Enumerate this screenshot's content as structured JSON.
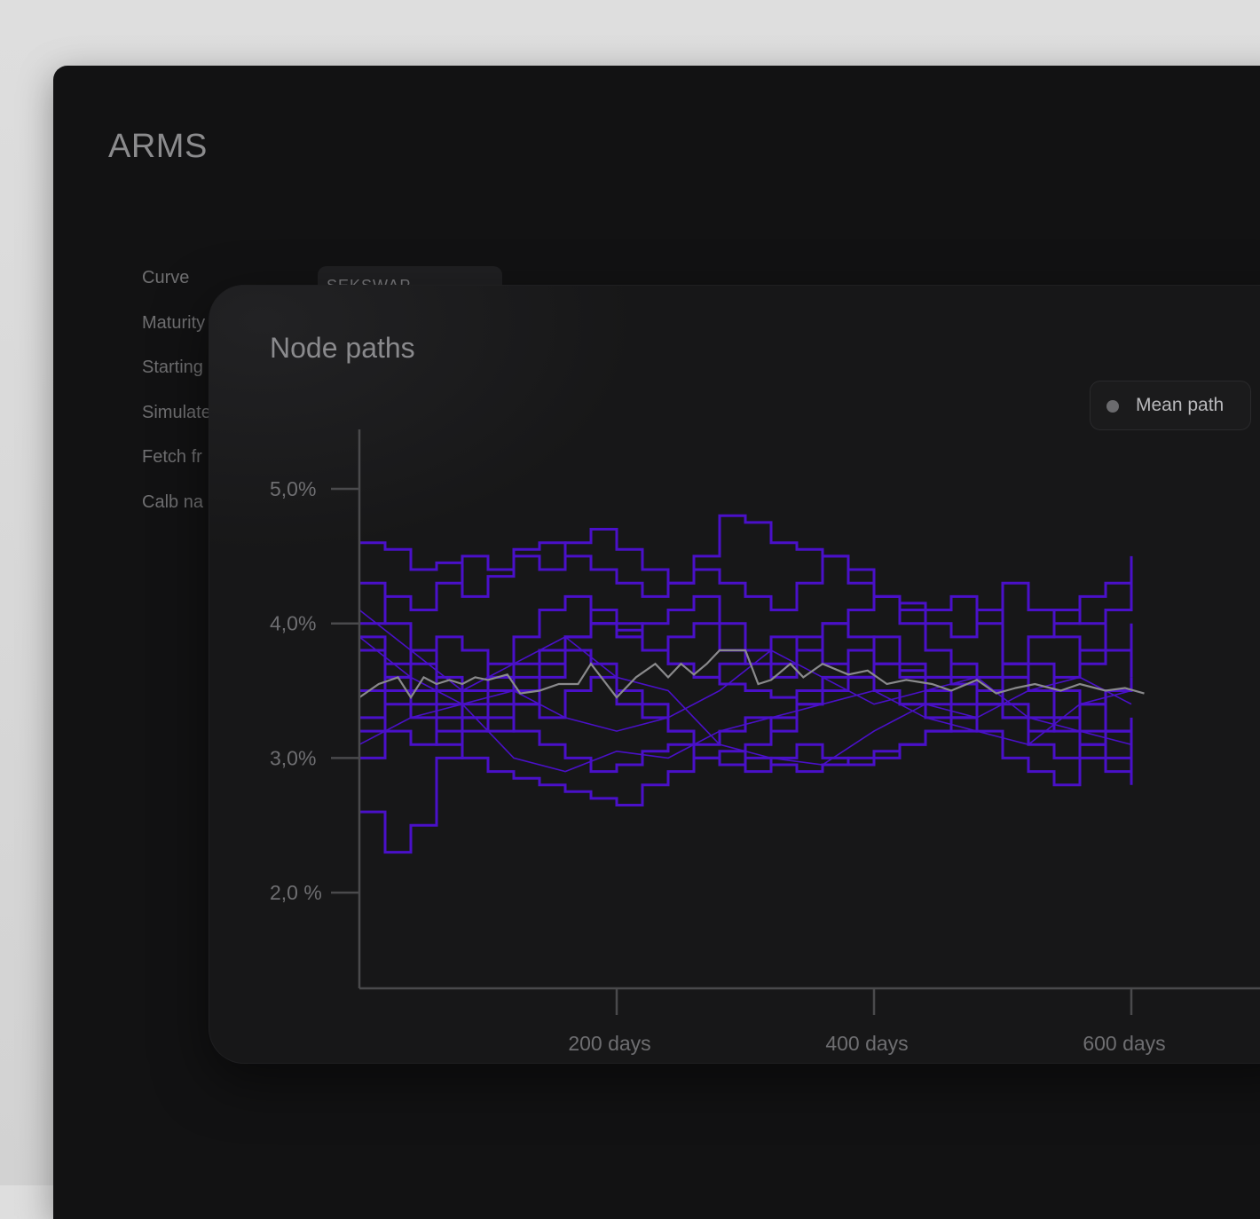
{
  "app": {
    "title": "ARMS"
  },
  "form": {
    "labels": [
      "Curve",
      "Maturity",
      "Starting",
      "Simulate",
      "Fetch fr",
      "Calb na"
    ],
    "curve_select": {
      "value": "SEKSWAP"
    }
  },
  "card": {
    "title": "Node paths"
  },
  "legend": {
    "label": "Mean path",
    "dot_color": "#6b6b6e"
  },
  "colors": {
    "paths": "#4a10c9",
    "mean": "#8a8a8c",
    "axis": "#4a4a4c"
  },
  "chart_data": {
    "type": "line",
    "title": "Node paths",
    "xlabel": "",
    "ylabel": "",
    "xlim": [
      0,
      610
    ],
    "ylim": [
      1.3,
      5.45
    ],
    "x_ticks": [
      200,
      400,
      600
    ],
    "x_tick_labels": [
      "200 days",
      "400 days",
      "600 days"
    ],
    "y_ticks": [
      5.0,
      4.0,
      3.0,
      2.0
    ],
    "y_tick_labels": [
      "5,0%",
      "4,0%",
      "3,0%",
      "2,0 %"
    ],
    "grid": false,
    "legend": "top-right",
    "paths": [
      {
        "x": [
          0,
          20,
          40,
          60,
          80,
          100,
          120,
          140,
          160,
          180,
          200,
          220,
          240,
          260,
          280,
          300,
          320,
          340,
          360,
          380,
          400,
          420,
          440,
          460,
          480,
          500,
          520,
          540,
          560,
          580,
          600
        ],
        "y": [
          4.6,
          4.55,
          4.4,
          4.45,
          4.2,
          4.35,
          4.5,
          4.4,
          4.6,
          4.7,
          4.55,
          4.4,
          4.3,
          4.5,
          4.8,
          4.75,
          4.6,
          4.55,
          4.5,
          4.3,
          4.2,
          4.1,
          4.0,
          3.9,
          4.1,
          3.7,
          3.5,
          3.6,
          3.8,
          4.1,
          4.5
        ]
      },
      {
        "x": [
          0,
          20,
          40,
          60,
          80,
          100,
          120,
          140,
          160,
          180,
          200,
          220,
          240,
          260,
          280,
          300,
          320,
          340,
          360,
          380,
          400,
          420,
          440,
          460,
          480,
          500,
          520,
          540,
          560,
          580,
          600
        ],
        "y": [
          4.0,
          4.2,
          4.1,
          4.3,
          4.5,
          4.4,
          4.55,
          4.6,
          4.5,
          4.4,
          4.3,
          4.2,
          4.3,
          4.4,
          4.3,
          4.2,
          4.1,
          4.3,
          4.5,
          4.4,
          4.2,
          4.15,
          4.1,
          4.2,
          4.0,
          4.3,
          4.1,
          3.9,
          3.7,
          3.8,
          4.0
        ]
      },
      {
        "x": [
          0,
          20,
          40,
          60,
          80,
          100,
          120,
          140,
          160,
          180,
          200,
          220,
          240,
          260,
          280,
          300,
          320,
          340,
          360,
          380,
          400,
          420,
          440,
          460,
          480,
          500,
          520,
          540,
          560,
          580,
          600
        ],
        "y": [
          3.2,
          3.4,
          3.3,
          3.1,
          3.0,
          2.9,
          2.85,
          2.8,
          2.75,
          2.7,
          2.65,
          2.8,
          2.9,
          3.0,
          3.05,
          3.0,
          2.95,
          2.9,
          2.95,
          3.0,
          3.05,
          3.1,
          3.2,
          3.3,
          3.2,
          3.0,
          2.9,
          2.8,
          3.0,
          2.9,
          2.8
        ]
      },
      {
        "x": [
          0,
          20,
          40,
          60,
          80,
          100,
          120,
          140,
          160,
          180,
          200,
          220,
          240,
          260,
          280,
          300,
          320,
          340,
          360,
          380,
          400,
          420,
          440,
          460,
          480,
          500,
          520,
          540,
          560,
          580,
          600
        ],
        "y": [
          2.6,
          2.3,
          2.5,
          3.0,
          3.2,
          3.4,
          3.6,
          3.8,
          3.9,
          4.0,
          3.95,
          3.8,
          3.7,
          3.6,
          3.55,
          3.5,
          3.45,
          3.4,
          3.5,
          3.6,
          3.7,
          3.65,
          3.6,
          3.55,
          3.4,
          3.3,
          3.2,
          3.3,
          3.4,
          3.5,
          3.6
        ]
      },
      {
        "x": [
          0,
          20,
          40,
          60,
          80,
          100,
          120,
          140,
          160,
          180,
          200,
          220,
          240,
          260,
          280,
          300,
          320,
          340,
          360,
          380,
          400,
          420,
          440,
          460,
          480,
          500,
          520,
          540,
          560,
          580,
          600
        ],
        "y": [
          3.8,
          3.6,
          3.5,
          3.4,
          3.5,
          3.6,
          3.7,
          3.8,
          3.9,
          4.0,
          3.9,
          3.8,
          3.7,
          3.6,
          3.7,
          3.8,
          3.9,
          3.8,
          3.7,
          3.6,
          3.5,
          3.4,
          3.3,
          3.2,
          3.4,
          3.6,
          3.5,
          3.3,
          3.2,
          3.0,
          2.9
        ]
      },
      {
        "x": [
          0,
          20,
          40,
          60,
          80,
          100,
          120,
          140,
          160,
          180,
          200,
          220,
          240,
          260,
          280,
          300,
          320,
          340,
          360,
          380,
          400,
          420,
          440,
          460,
          480,
          500,
          520,
          540,
          560,
          580,
          600
        ],
        "y": [
          3.0,
          3.2,
          3.1,
          3.3,
          3.4,
          3.3,
          3.2,
          3.1,
          3.0,
          2.9,
          2.95,
          3.05,
          3.1,
          3.0,
          2.95,
          2.9,
          3.0,
          3.1,
          3.0,
          2.95,
          3.0,
          3.1,
          3.2,
          3.4,
          3.5,
          3.3,
          3.1,
          3.0,
          3.1,
          3.2,
          3.0
        ]
      },
      {
        "x": [
          0,
          20,
          40,
          60,
          80,
          100,
          120,
          140,
          160,
          180,
          200,
          220,
          240,
          260,
          280,
          300,
          320,
          340,
          360,
          380,
          400,
          420,
          440,
          460,
          480,
          500,
          520,
          540,
          560,
          580,
          600
        ],
        "y": [
          4.3,
          4.0,
          3.8,
          3.6,
          3.5,
          3.7,
          3.9,
          4.1,
          4.2,
          4.0,
          3.9,
          4.0,
          4.1,
          4.2,
          4.0,
          3.8,
          3.7,
          3.9,
          4.0,
          4.1,
          4.2,
          4.0,
          3.8,
          3.6,
          3.5,
          3.7,
          3.9,
          4.0,
          4.2,
          4.3,
          4.4
        ]
      },
      {
        "x": [
          0,
          20,
          40,
          60,
          80,
          100,
          120,
          140,
          160,
          180,
          200,
          220,
          240,
          260,
          280,
          300,
          320,
          340,
          360,
          380,
          400,
          420,
          440,
          460,
          480,
          500,
          520,
          540,
          560,
          580,
          600
        ],
        "y": [
          3.5,
          3.6,
          3.4,
          3.2,
          3.3,
          3.5,
          3.4,
          3.6,
          3.8,
          3.7,
          3.5,
          3.4,
          3.2,
          3.0,
          2.95,
          3.1,
          3.3,
          3.5,
          3.6,
          3.8,
          3.9,
          3.7,
          3.5,
          3.3,
          3.4,
          3.6,
          3.7,
          3.5,
          3.4,
          3.2,
          3.1
        ]
      },
      {
        "x": [
          0,
          20,
          40,
          60,
          80,
          100,
          120,
          140,
          160,
          180,
          200,
          220,
          240,
          260,
          280,
          300,
          320,
          340,
          360,
          380,
          400,
          420,
          440,
          460,
          480,
          500,
          520,
          540,
          560,
          580,
          600
        ],
        "y": [
          3.9,
          3.7,
          3.8,
          3.5,
          3.3,
          3.2,
          3.4,
          3.3,
          3.5,
          3.6,
          3.4,
          3.3,
          3.2,
          3.1,
          3.2,
          3.3,
          3.2,
          3.4,
          3.5,
          3.6,
          3.5,
          3.4,
          3.6,
          3.7,
          3.6,
          3.4,
          3.3,
          3.2,
          3.1,
          3.2,
          3.3
        ]
      },
      {
        "x": [
          0,
          20,
          40,
          60,
          80,
          100,
          120,
          140,
          160,
          180,
          200,
          220,
          240,
          260,
          280,
          300,
          320,
          340,
          360,
          380,
          400,
          420,
          440,
          460,
          480,
          500,
          520,
          540,
          560,
          580,
          600
        ],
        "y": [
          3.3,
          3.5,
          3.7,
          3.9,
          3.8,
          3.6,
          3.5,
          3.7,
          3.9,
          4.1,
          4.0,
          3.8,
          3.9,
          4.0,
          3.8,
          3.7,
          3.6,
          3.8,
          4.0,
          3.9,
          3.7,
          3.6,
          3.4,
          3.3,
          3.5,
          3.7,
          3.9,
          4.1,
          4.0,
          3.8,
          3.6
        ]
      }
    ],
    "smooth_paths": [
      {
        "x": [
          0,
          40,
          80,
          120,
          160,
          200,
          240,
          280,
          320,
          360,
          400,
          440,
          480,
          520,
          560,
          600
        ],
        "y": [
          3.9,
          3.6,
          3.4,
          3.5,
          3.3,
          3.2,
          3.3,
          3.5,
          3.8,
          3.6,
          3.4,
          3.5,
          3.6,
          3.3,
          3.2,
          3.1
        ]
      },
      {
        "x": [
          0,
          40,
          80,
          120,
          160,
          200,
          240,
          280,
          320,
          360,
          400,
          440,
          480,
          520,
          560,
          600
        ],
        "y": [
          3.1,
          3.3,
          3.4,
          3.0,
          2.9,
          3.05,
          3.0,
          3.2,
          3.3,
          3.4,
          3.5,
          3.3,
          3.2,
          3.1,
          3.4,
          3.5
        ]
      },
      {
        "x": [
          0,
          40,
          80,
          120,
          160,
          200,
          240,
          280,
          320,
          360,
          400,
          440,
          480,
          520,
          560,
          600
        ],
        "y": [
          4.1,
          3.8,
          3.5,
          3.7,
          3.9,
          3.6,
          3.5,
          3.1,
          3.0,
          2.95,
          3.2,
          3.4,
          3.3,
          3.5,
          3.6,
          3.4
        ]
      }
    ],
    "mean_path": {
      "name": "Mean path",
      "x": [
        0,
        15,
        30,
        40,
        50,
        60,
        70,
        80,
        90,
        100,
        115,
        125,
        140,
        155,
        170,
        180,
        200,
        215,
        230,
        240,
        250,
        260,
        270,
        280,
        300,
        310,
        320,
        335,
        345,
        360,
        380,
        395,
        410,
        425,
        445,
        460,
        480,
        495,
        510,
        525,
        545,
        560,
        580,
        595,
        610
      ],
      "y": [
        3.45,
        3.55,
        3.6,
        3.45,
        3.6,
        3.55,
        3.58,
        3.55,
        3.6,
        3.58,
        3.62,
        3.48,
        3.5,
        3.55,
        3.55,
        3.7,
        3.45,
        3.6,
        3.7,
        3.6,
        3.7,
        3.62,
        3.7,
        3.8,
        3.8,
        3.55,
        3.58,
        3.7,
        3.6,
        3.7,
        3.62,
        3.65,
        3.55,
        3.58,
        3.55,
        3.5,
        3.58,
        3.48,
        3.52,
        3.55,
        3.5,
        3.55,
        3.5,
        3.52,
        3.48
      ]
    }
  }
}
